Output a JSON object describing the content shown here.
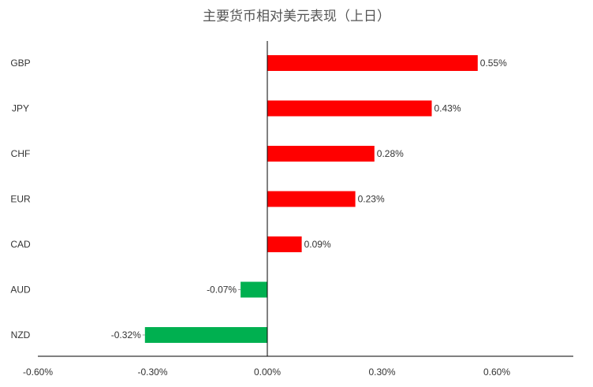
{
  "chart_data": {
    "type": "bar",
    "orientation": "horizontal",
    "title": "主要货币相对美元表现（上日）",
    "xlabel": "",
    "ylabel": "",
    "categories": [
      "GBP",
      "JPY",
      "CHF",
      "EUR",
      "CAD",
      "AUD",
      "NZD"
    ],
    "values": [
      0.55,
      0.43,
      0.28,
      0.23,
      0.09,
      -0.07,
      -0.32
    ],
    "value_labels": [
      "0.55%",
      "0.43%",
      "0.28%",
      "0.23%",
      "0.09%",
      "-0.07%",
      "-0.32%"
    ],
    "xlim": [
      -0.6,
      0.8
    ],
    "xticks": [
      -0.6,
      -0.3,
      0.0,
      0.3,
      0.6
    ],
    "xtick_labels": [
      "-0.60%",
      "-0.30%",
      "0.00%",
      "0.30%",
      "0.60%"
    ],
    "grid": false,
    "legend": "none",
    "colors": {
      "positive": "#ff0000",
      "negative": "#00b050",
      "axis": "#000000"
    }
  }
}
